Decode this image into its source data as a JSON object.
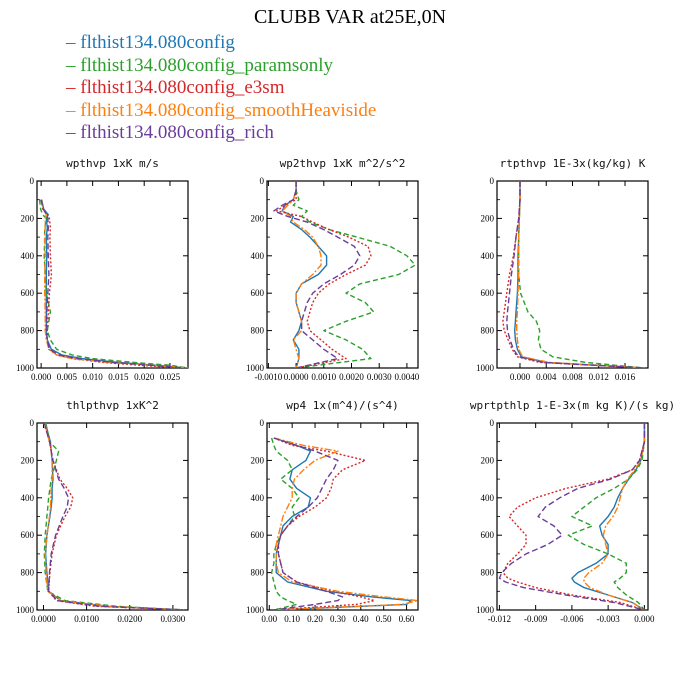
{
  "title": "CLUBB VAR at25E,0N",
  "legend": [
    {
      "label": "flthist134.080config",
      "color": "#1f77b4"
    },
    {
      "label": "flthist134.080config_paramsonly",
      "color": "#2ca02c"
    },
    {
      "label": "flthist134.080config_e3sm",
      "color": "#d62728"
    },
    {
      "label": "flthist134.080config_smoothHeaviside",
      "color": "#ff7f0e"
    },
    {
      "label": "flthist134.080config_rich",
      "color": "#6a3d9a"
    }
  ],
  "chart_data": [
    {
      "type": "line",
      "title": "wpthvp  1xK m/s",
      "xlim": [
        -0.0008,
        0.0285
      ],
      "xticks": [
        0.0,
        0.005,
        0.01,
        0.015,
        0.02,
        0.025
      ],
      "xtick_labels": [
        "0.000",
        "0.005",
        "0.010",
        "0.015",
        "0.020",
        "0.025"
      ],
      "ylim": [
        1000,
        0
      ],
      "yticks": [
        0,
        200,
        400,
        600,
        800,
        1000
      ],
      "y": [
        100,
        150,
        180,
        200,
        250,
        300,
        400,
        500,
        600,
        700,
        800,
        850,
        900,
        930,
        950,
        970,
        985,
        1000
      ],
      "series": [
        {
          "values": [
            0.0001,
            0.0005,
            0.0014,
            0.001,
            0.0012,
            0.001,
            0.0011,
            0.001,
            0.001,
            0.001,
            0.001,
            0.0012,
            0.002,
            0.004,
            0.008,
            0.015,
            0.022,
            0.0285
          ]
        },
        {
          "values": [
            -0.0003,
            -0.0001,
            0.0003,
            0.001,
            0.0007,
            0.0007,
            0.0006,
            0.0008,
            0.001,
            0.0018,
            0.0012,
            0.0018,
            0.003,
            0.006,
            0.01,
            0.018,
            0.025,
            0.0285
          ]
        },
        {
          "values": [
            0.0001,
            0.0003,
            0.0012,
            0.0016,
            0.0018,
            0.0017,
            0.0018,
            0.002,
            0.0016,
            0.0014,
            0.0012,
            0.0012,
            0.0015,
            0.003,
            0.006,
            0.012,
            0.019,
            0.027
          ]
        },
        {
          "values": [
            0.0,
            0.0004,
            0.001,
            0.0008,
            0.0008,
            0.0007,
            0.0008,
            0.0007,
            0.0007,
            0.0008,
            0.0008,
            0.001,
            0.0015,
            0.003,
            0.006,
            0.013,
            0.021,
            0.0285
          ]
        },
        {
          "values": [
            0.0,
            0.0004,
            0.0011,
            0.0013,
            0.0014,
            0.0013,
            0.0014,
            0.0015,
            0.0013,
            0.0011,
            0.001,
            0.0012,
            0.0016,
            0.0035,
            0.007,
            0.014,
            0.021,
            0.028
          ]
        }
      ]
    },
    {
      "type": "line",
      "title": "wp2thvp  1xK m^2/s^2",
      "xlim": [
        -0.00105,
        0.0044
      ],
      "xticks": [
        -0.001,
        0.0,
        0.001,
        0.002,
        0.003,
        0.004
      ],
      "xtick_labels": [
        "-0.0010",
        "0.0000",
        "0.0010",
        "0.0020",
        "0.0030",
        "0.0040"
      ],
      "ylim": [
        1000,
        0
      ],
      "yticks": [
        0,
        200,
        400,
        600,
        800,
        1000
      ],
      "y": [
        0,
        50,
        100,
        130,
        160,
        190,
        220,
        260,
        300,
        350,
        400,
        450,
        500,
        550,
        600,
        650,
        700,
        750,
        800,
        850,
        900,
        950,
        1000
      ],
      "series": [
        {
          "values": [
            0.0,
            0.0,
            -0.0001,
            -0.0004,
            -0.0005,
            -0.0001,
            -0.0002,
            0.0002,
            0.0005,
            0.0008,
            0.0011,
            0.0011,
            0.0008,
            0.0002,
            0.0,
            0.0,
            0.0001,
            0.0002,
            0.0001,
            -0.0001,
            0.0001,
            0.0001,
            0.0
          ]
        },
        {
          "values": [
            0.0,
            0.0,
            0.0001,
            -0.0001,
            0.0004,
            0.0002,
            0.0005,
            0.0012,
            0.0022,
            0.0034,
            0.004,
            0.0043,
            0.0037,
            0.0023,
            0.0018,
            0.0025,
            0.0028,
            0.0018,
            0.001,
            0.0018,
            0.0024,
            0.0027,
            0.0
          ]
        },
        {
          "values": [
            0.0,
            0.0,
            0.0,
            -0.0004,
            -0.0007,
            0.0002,
            0.0006,
            0.0012,
            0.0019,
            0.0026,
            0.0027,
            0.0025,
            0.0018,
            0.0012,
            0.0008,
            0.0006,
            0.0005,
            0.0004,
            0.0005,
            0.0009,
            0.0013,
            0.0018,
            0.0
          ]
        },
        {
          "values": [
            0.0,
            0.0,
            -0.0001,
            -0.0003,
            -0.0005,
            -0.0002,
            -0.0001,
            0.0003,
            0.0006,
            0.0008,
            0.0009,
            0.0009,
            0.0006,
            0.0002,
            0.0,
            0.0,
            0.0001,
            0.0002,
            0.0002,
            -0.0001,
            0.0,
            0.0001,
            0.0
          ]
        },
        {
          "values": [
            0.0,
            0.0,
            -0.0001,
            -0.0005,
            -0.0008,
            -0.0003,
            0.0004,
            0.001,
            0.0015,
            0.0021,
            0.0023,
            0.0021,
            0.0016,
            0.001,
            0.0006,
            0.0004,
            0.0003,
            0.0002,
            0.0002,
            0.0006,
            0.001,
            0.0015,
            0.0
          ]
        }
      ]
    },
    {
      "type": "line",
      "title": "rtpthvp  1E-3x(kg/kg) K",
      "xlim": [
        -0.0035,
        0.0195
      ],
      "xticks": [
        0.0,
        0.004,
        0.008,
        0.012,
        0.016
      ],
      "xtick_labels": [
        "0.000",
        "0.004",
        "0.008",
        "0.012",
        "0.016"
      ],
      "ylim": [
        1000,
        0
      ],
      "yticks": [
        0,
        200,
        400,
        600,
        800,
        1000
      ],
      "y": [
        0,
        100,
        200,
        300,
        400,
        500,
        600,
        700,
        750,
        800,
        850,
        900,
        940,
        970,
        1000
      ],
      "series": [
        {
          "values": [
            0.0,
            0.0,
            -0.0001,
            -0.0002,
            -0.0003,
            -0.0003,
            -0.0004,
            -0.0006,
            -0.0007,
            -0.0008,
            -0.0007,
            -0.0004,
            0.0002,
            0.004,
            0.019
          ]
        },
        {
          "values": [
            0.0,
            0.0,
            -0.0001,
            -0.0002,
            -0.0002,
            -0.0002,
            0.0001,
            0.0012,
            0.0025,
            0.003,
            0.0028,
            0.0032,
            0.005,
            0.01,
            0.019
          ]
        },
        {
          "values": [
            0.0,
            0.0,
            -0.0002,
            -0.0006,
            -0.001,
            -0.0016,
            -0.002,
            -0.0024,
            -0.0026,
            -0.0024,
            -0.0018,
            -0.0012,
            -0.0004,
            0.003,
            0.019
          ]
        },
        {
          "values": [
            0.0,
            0.0,
            -0.0001,
            -0.0002,
            -0.0002,
            -0.0002,
            -0.0003,
            -0.0004,
            -0.0005,
            -0.0005,
            -0.0004,
            -0.0002,
            0.0004,
            0.0045,
            0.019
          ]
        },
        {
          "values": [
            0.0,
            0.0,
            -0.0002,
            -0.0006,
            -0.0009,
            -0.0013,
            -0.0016,
            -0.0019,
            -0.002,
            -0.0019,
            -0.0015,
            -0.001,
            -0.0002,
            0.0035,
            0.019
          ]
        }
      ]
    },
    {
      "type": "line",
      "title": "thlpthvp  1xK^2",
      "xlim": [
        -0.0015,
        0.0335
      ],
      "xticks": [
        0.0,
        0.01,
        0.02,
        0.03
      ],
      "xtick_labels": [
        "0.0000",
        "0.0100",
        "0.0200",
        "0.0300"
      ],
      "ylim": [
        1000,
        0
      ],
      "yticks": [
        0,
        200,
        400,
        600,
        800,
        1000
      ],
      "y": [
        0,
        50,
        100,
        150,
        200,
        300,
        350,
        400,
        450,
        500,
        600,
        700,
        800,
        900,
        950,
        980,
        1000
      ],
      "series": [
        {
          "values": [
            0.0005,
            0.001,
            0.0016,
            0.0018,
            0.002,
            0.0022,
            0.002,
            0.002,
            0.0018,
            0.0015,
            0.0008,
            0.0005,
            0.0008,
            0.0012,
            0.004,
            0.015,
            0.033
          ]
        },
        {
          "values": [
            0.0005,
            0.001,
            0.0014,
            0.0035,
            0.003,
            0.0018,
            0.0015,
            0.0012,
            0.001,
            0.0008,
            0.0004,
            0.0002,
            0.0004,
            0.001,
            0.005,
            0.017,
            0.033
          ]
        },
        {
          "values": [
            0.0,
            0.0008,
            0.0015,
            0.0018,
            0.0022,
            0.0038,
            0.0055,
            0.0068,
            0.0063,
            0.005,
            0.003,
            0.002,
            0.0015,
            0.0012,
            0.003,
            0.012,
            0.033
          ]
        },
        {
          "values": [
            0.0003,
            0.0008,
            0.0014,
            0.0018,
            0.002,
            0.002,
            0.0018,
            0.0017,
            0.0016,
            0.0014,
            0.0008,
            0.0004,
            0.0006,
            0.001,
            0.004,
            0.015,
            0.033
          ]
        },
        {
          "values": [
            0.0002,
            0.0008,
            0.0014,
            0.0018,
            0.0022,
            0.0035,
            0.0048,
            0.0058,
            0.0055,
            0.0045,
            0.0028,
            0.0018,
            0.0014,
            0.0012,
            0.0032,
            0.013,
            0.033
          ]
        }
      ]
    },
    {
      "type": "line",
      "title": "wp4  1x(m^4)/(s^4)",
      "xlim": [
        -0.01,
        0.65
      ],
      "xticks": [
        0.0,
        0.1,
        0.2,
        0.3,
        0.4,
        0.5,
        0.6
      ],
      "xtick_labels": [
        "0.00",
        "0.10",
        "0.20",
        "0.30",
        "0.40",
        "0.50",
        "0.60"
      ],
      "ylim": [
        1000,
        0
      ],
      "yticks": [
        0,
        200,
        400,
        600,
        800,
        1000
      ],
      "y": [
        80,
        120,
        150,
        200,
        250,
        300,
        350,
        400,
        450,
        500,
        550,
        600,
        650,
        700,
        750,
        800,
        850,
        900,
        930,
        950,
        970,
        1000
      ],
      "series": [
        {
          "values": [
            0.02,
            0.12,
            0.18,
            0.16,
            0.1,
            0.09,
            0.12,
            0.18,
            0.17,
            0.1,
            0.06,
            0.05,
            0.04,
            0.03,
            0.03,
            0.03,
            0.08,
            0.25,
            0.45,
            0.62,
            0.6,
            0.02
          ]
        },
        {
          "values": [
            0.01,
            0.02,
            0.03,
            0.08,
            0.1,
            0.05,
            0.1,
            0.13,
            0.1,
            0.11,
            0.08,
            0.05,
            0.03,
            0.02,
            0.02,
            0.01,
            0.02,
            0.03,
            0.05,
            0.08,
            0.12,
            0.02
          ]
        },
        {
          "values": [
            0.02,
            0.1,
            0.25,
            0.42,
            0.32,
            0.28,
            0.27,
            0.25,
            0.2,
            0.13,
            0.08,
            0.05,
            0.04,
            0.04,
            0.05,
            0.06,
            0.12,
            0.28,
            0.4,
            0.46,
            0.38,
            0.02
          ]
        },
        {
          "values": [
            0.02,
            0.15,
            0.3,
            0.2,
            0.15,
            0.11,
            0.1,
            0.1,
            0.08,
            0.06,
            0.05,
            0.04,
            0.03,
            0.03,
            0.03,
            0.04,
            0.1,
            0.3,
            0.5,
            0.65,
            0.58,
            0.02
          ]
        },
        {
          "values": [
            0.02,
            0.12,
            0.2,
            0.3,
            0.28,
            0.25,
            0.23,
            0.21,
            0.17,
            0.12,
            0.08,
            0.05,
            0.04,
            0.04,
            0.05,
            0.06,
            0.12,
            0.25,
            0.32,
            0.3,
            0.2,
            0.02
          ]
        }
      ]
    },
    {
      "type": "line",
      "title": "wprtpthlp  1-E-3x(m kg K)/(s kg)",
      "xlim": [
        -0.0122,
        0.0003
      ],
      "xticks": [
        -0.012,
        -0.009,
        -0.006,
        -0.003,
        0.0
      ],
      "xtick_labels": [
        "-0.012",
        "-0.009",
        "-0.006",
        "-0.003",
        "0.000"
      ],
      "ylim": [
        1000,
        0
      ],
      "yticks": [
        0,
        200,
        400,
        600,
        800,
        1000
      ],
      "y": [
        0,
        100,
        200,
        250,
        300,
        350,
        400,
        450,
        500,
        550,
        600,
        650,
        700,
        750,
        800,
        830,
        850,
        880,
        920,
        960,
        1000
      ],
      "series": [
        {
          "values": [
            0.0,
            0.0,
            -0.0003,
            -0.0007,
            -0.0013,
            -0.0018,
            -0.0022,
            -0.0025,
            -0.003,
            -0.0037,
            -0.0035,
            -0.003,
            -0.003,
            -0.004,
            -0.0055,
            -0.006,
            -0.0058,
            -0.005,
            -0.003,
            -0.001,
            0.0
          ]
        },
        {
          "values": [
            0.0,
            0.0,
            -0.0002,
            -0.0006,
            -0.0013,
            -0.0025,
            -0.004,
            -0.005,
            -0.006,
            -0.0043,
            -0.0063,
            -0.005,
            -0.003,
            -0.0015,
            -0.0015,
            -0.002,
            -0.0025,
            -0.0022,
            -0.0015,
            -0.0005,
            0.0
          ]
        },
        {
          "values": [
            0.0,
            0.0,
            -0.0004,
            -0.001,
            -0.003,
            -0.0065,
            -0.009,
            -0.0105,
            -0.0112,
            -0.0105,
            -0.0098,
            -0.0098,
            -0.0105,
            -0.0113,
            -0.0117,
            -0.0113,
            -0.0105,
            -0.009,
            -0.006,
            -0.002,
            0.0
          ]
        },
        {
          "values": [
            0.0,
            0.0,
            -0.0003,
            -0.0008,
            -0.0014,
            -0.0018,
            -0.002,
            -0.0022,
            -0.0026,
            -0.0032,
            -0.0034,
            -0.0032,
            -0.003,
            -0.0035,
            -0.0046,
            -0.005,
            -0.005,
            -0.0045,
            -0.003,
            -0.001,
            0.0
          ]
        },
        {
          "values": [
            0.0,
            0.0,
            -0.0004,
            -0.001,
            -0.0028,
            -0.0055,
            -0.007,
            -0.0082,
            -0.0088,
            -0.0075,
            -0.0068,
            -0.008,
            -0.0098,
            -0.011,
            -0.0118,
            -0.012,
            -0.0115,
            -0.01,
            -0.0065,
            -0.0025,
            0.0
          ]
        }
      ]
    }
  ]
}
